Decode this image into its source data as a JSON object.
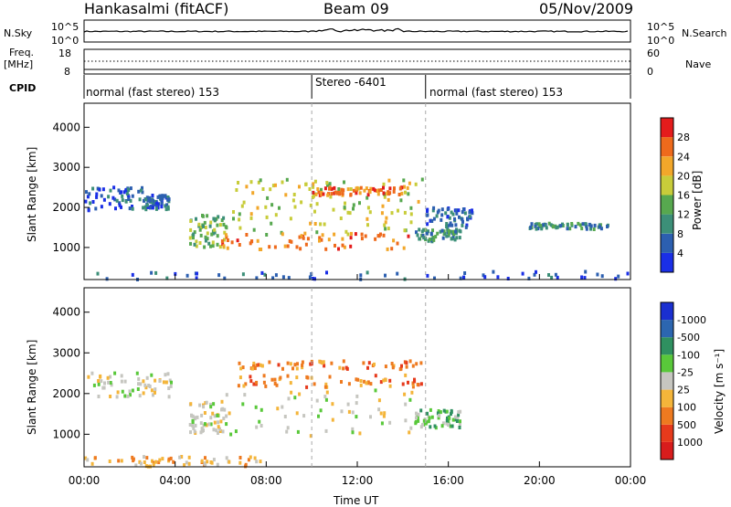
{
  "header": {
    "radar": "Hankasalmi (fitACF)",
    "beam": "Beam 09",
    "date": "05/Nov/2009"
  },
  "top_panels": {
    "nsky_label": "N.Sky",
    "nsky_scale_top": "10^5",
    "nsky_scale_bottom": "10^0",
    "nsearch_label": "N.Search",
    "nsearch_scale_top": "10^5",
    "nsearch_scale_bottom": "10^0",
    "freq_label": "Freq.",
    "freq_unit": "[MHz]",
    "freq_top": "18",
    "freq_bottom": "8",
    "nave_label": "Nave",
    "nave_top": "60",
    "nave_bottom": "0",
    "cpid_label": "CPID",
    "cpid_segments": [
      "normal (fast stereo) 153",
      "Stereo -6401",
      "normal (fast stereo) 153"
    ]
  },
  "colors": {
    "gray": "#c6c6c0",
    "dark_red": "#d81c1c"
  },
  "chart_data": [
    {
      "type": "heatmap",
      "name": "power",
      "xlabel": "Time UT",
      "ylabel": "Slant Range [km]",
      "xticks": [
        "00:00",
        "04:00",
        "08:00",
        "12:00",
        "16:00",
        "20:00",
        "00:00"
      ],
      "yticks": [
        "1000",
        "2000",
        "3000",
        "4000"
      ],
      "ylim": [
        200,
        4600
      ],
      "xlim_hours": [
        0,
        24
      ],
      "colorbar": {
        "label": "Power [dB]",
        "ticks": [
          "4",
          "8",
          "12",
          "16",
          "20",
          "24",
          "28"
        ],
        "colors": [
          "#1a2fe6",
          "#2c5fb0",
          "#3c8f78",
          "#57a84f",
          "#c8cc3a",
          "#f2a72a",
          "#ee6a1c",
          "#e41c1c"
        ]
      },
      "regions": [
        {
          "t0": 0.0,
          "t1": 2.6,
          "r0": 1900,
          "r1": 2500,
          "level": 1
        },
        {
          "t0": 2.6,
          "t1": 3.8,
          "r0": 1950,
          "r1": 2300,
          "level": 1
        },
        {
          "t0": 4.6,
          "t1": 6.2,
          "r0": 1000,
          "r1": 1800,
          "level": 3
        },
        {
          "t0": 6.0,
          "t1": 14.5,
          "r0": 950,
          "r1": 1350,
          "level": 6
        },
        {
          "t0": 6.5,
          "t1": 14.5,
          "r0": 1300,
          "r1": 2100,
          "level": 4
        },
        {
          "t0": 6.5,
          "t1": 14.8,
          "r0": 2100,
          "r1": 2700,
          "level": 4
        },
        {
          "t0": 10.0,
          "t1": 14.0,
          "r0": 2300,
          "r1": 2500,
          "level": 6
        },
        {
          "t0": 14.5,
          "t1": 16.5,
          "r0": 1150,
          "r1": 1450,
          "level": 2
        },
        {
          "t0": 15.0,
          "t1": 17.0,
          "r0": 1500,
          "r1": 2000,
          "level": 1
        },
        {
          "t0": 19.5,
          "t1": 23.0,
          "r0": 1450,
          "r1": 1600,
          "level": 2
        },
        {
          "t0": 0.0,
          "t1": 24.0,
          "r0": 200,
          "r1": 400,
          "level": 1
        }
      ]
    },
    {
      "type": "heatmap",
      "name": "velocity",
      "xlabel": "Time UT",
      "ylabel": "Slant Range [km]",
      "xticks": [
        "00:00",
        "04:00",
        "08:00",
        "12:00",
        "16:00",
        "20:00",
        "00:00"
      ],
      "yticks": [
        "1000",
        "2000",
        "3000",
        "4000"
      ],
      "ylim": [
        200,
        4600
      ],
      "xlim_hours": [
        0,
        24
      ],
      "colorbar": {
        "label": "Velocity [m s⁻¹]",
        "ticks": [
          "1000",
          "500",
          "100",
          "25",
          "-25",
          "-100",
          "-500",
          "-1000"
        ],
        "colors": [
          "#1a2fd0",
          "#2c66b0",
          "#2f9060",
          "#59c83a",
          "#c6c6c0",
          "#f4b53a",
          "#ee7a20",
          "#e63a1c",
          "#d81c1c"
        ]
      },
      "regions": [
        {
          "t0": 0.0,
          "t1": 3.8,
          "r0": 1900,
          "r1": 2500,
          "level": 4
        },
        {
          "t0": 4.6,
          "t1": 6.2,
          "r0": 1000,
          "r1": 1800,
          "level": 4
        },
        {
          "t0": 6.0,
          "t1": 14.5,
          "r0": 950,
          "r1": 2100,
          "level": 4
        },
        {
          "t0": 6.5,
          "t1": 14.8,
          "r0": 2150,
          "r1": 2450,
          "level": 6
        },
        {
          "t0": 6.5,
          "t1": 14.8,
          "r0": 2600,
          "r1": 2800,
          "level": 6
        },
        {
          "t0": 14.5,
          "t1": 16.5,
          "r0": 1150,
          "r1": 1600,
          "level": 3
        },
        {
          "t0": 0.0,
          "t1": 8.0,
          "r0": 200,
          "r1": 450,
          "level": 5
        }
      ]
    }
  ],
  "axis_title": "Time UT"
}
